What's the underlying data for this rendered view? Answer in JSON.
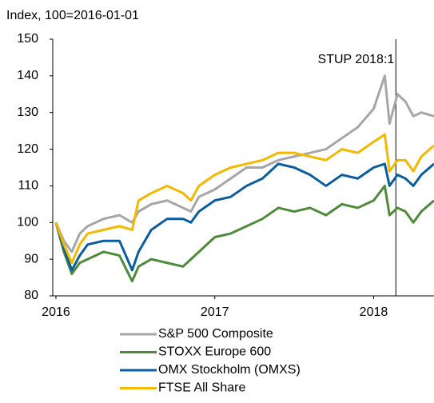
{
  "chart_data": {
    "type": "line",
    "y_label": "Index, 100=2016-01-01",
    "x": [
      2016.0,
      2016.05,
      2016.1,
      2016.15,
      2016.2,
      2016.3,
      2016.4,
      2016.48,
      2016.52,
      2016.6,
      2016.7,
      2016.8,
      2016.85,
      2016.9,
      2017.0,
      2017.1,
      2017.2,
      2017.3,
      2017.4,
      2017.5,
      2017.6,
      2017.7,
      2017.8,
      2017.9,
      2018.0,
      2018.07,
      2018.1,
      2018.15,
      2018.2,
      2018.25,
      2018.3,
      2018.38
    ],
    "series": [
      {
        "name": "S&P 500 Composite",
        "color": "#a6a6a6",
        "values": [
          100,
          95,
          92,
          97,
          99,
          101,
          102,
          100,
          103,
          105,
          106,
          104,
          103,
          107,
          109,
          112,
          115,
          115,
          117,
          118,
          119,
          120,
          123,
          126,
          131,
          140,
          127,
          135,
          133,
          129,
          130,
          129
        ]
      },
      {
        "name": "STOXX Europe 600",
        "color": "#4e8b3a",
        "values": [
          100,
          92,
          86,
          89,
          90,
          92,
          91,
          84,
          88,
          90,
          89,
          88,
          90,
          92,
          96,
          97,
          99,
          101,
          104,
          103,
          104,
          102,
          105,
          104,
          106,
          110,
          102,
          104,
          103,
          100,
          103,
          106
        ]
      },
      {
        "name": "OMX Stockholm (OMXS)",
        "color": "#0b5da2",
        "values": [
          100,
          93,
          87,
          91,
          94,
          95,
          95,
          87,
          92,
          98,
          101,
          101,
          100,
          103,
          106,
          107,
          110,
          112,
          116,
          115,
          113,
          110,
          113,
          112,
          115,
          116,
          110,
          113,
          112,
          110,
          113,
          116
        ]
      },
      {
        "name": "FTSE All Share",
        "color": "#f5b800",
        "values": [
          100,
          94,
          89,
          94,
          97,
          98,
          99,
          98,
          106,
          108,
          110,
          108,
          106,
          110,
          113,
          115,
          116,
          117,
          119,
          119,
          118,
          117,
          120,
          119,
          122,
          124,
          114,
          117,
          117,
          114,
          118,
          121
        ]
      }
    ],
    "xlim": [
      2015.98,
      2018.38
    ],
    "xticks": [
      2016,
      2017,
      2018
    ],
    "ylim": [
      80,
      150
    ],
    "yticks": [
      80,
      90,
      100,
      110,
      120,
      130,
      140,
      150
    ],
    "annotation": {
      "x": 2018.14,
      "label": "STUP 2018:1"
    }
  }
}
